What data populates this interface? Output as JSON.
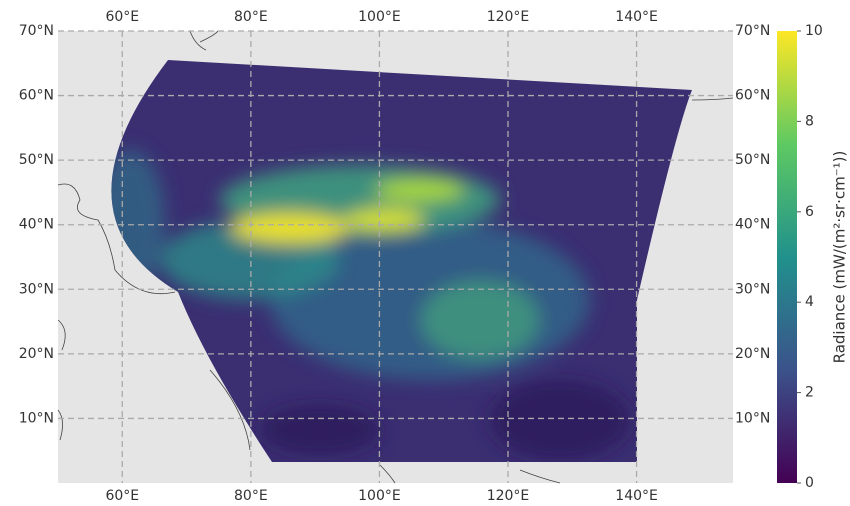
{
  "chart_data": {
    "type": "map",
    "xlim": [
      50,
      155
    ],
    "ylim": [
      0,
      70
    ],
    "xticks": [
      {
        "value": 60,
        "label": "60°E"
      },
      {
        "value": 80,
        "label": "80°E"
      },
      {
        "value": 100,
        "label": "100°E"
      },
      {
        "value": 120,
        "label": "120°E"
      },
      {
        "value": 140,
        "label": "140°E"
      }
    ],
    "yticks": [
      {
        "value": 10,
        "label": "10°N"
      },
      {
        "value": 20,
        "label": "20°N"
      },
      {
        "value": 30,
        "label": "30°N"
      },
      {
        "value": 40,
        "label": "40°N"
      },
      {
        "value": 50,
        "label": "50°N"
      },
      {
        "value": 60,
        "label": "60°N"
      },
      {
        "value": 70,
        "label": "70°N"
      }
    ],
    "grid": true,
    "colorbar": {
      "label": "Radiance (mW/(m²·sr·cm⁻¹))",
      "lim": [
        0,
        10
      ],
      "ticks": [
        0,
        2,
        4,
        6,
        8,
        10
      ],
      "colors": [
        "#440154",
        "#3b528b",
        "#21918c",
        "#5ec962",
        "#fde725"
      ]
    }
  }
}
